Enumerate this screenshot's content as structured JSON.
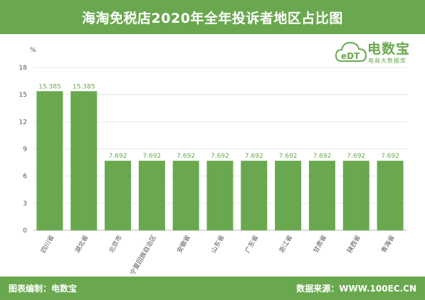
{
  "header": {
    "title": "海淘免税店2020年全年投诉者地区占比图"
  },
  "footer": {
    "left": "图表编制：电数宝",
    "right": "数据来源：WWW.100EC.CN"
  },
  "logo": {
    "name": "电数宝",
    "subtitle": "电商大数据库",
    "mark": "eDT"
  },
  "colors": {
    "accent": "#6aa84f",
    "bar": "#6aa84f",
    "grid": "#e8e8e8"
  },
  "chart_data": {
    "type": "bar",
    "title": "海淘免税店2020年全年投诉者地区占比图",
    "unit": "%",
    "categories": [
      "四川省",
      "湖北省",
      "北京市",
      "宁夏回族自治区",
      "安徽省",
      "山东省",
      "广东省",
      "浙江省",
      "甘肃省",
      "陕西省",
      "青海省"
    ],
    "values": [
      15.385,
      15.385,
      7.692,
      7.692,
      7.692,
      7.692,
      7.692,
      7.692,
      7.692,
      7.692,
      7.692
    ],
    "value_labels": [
      "15.385",
      "15.385",
      "7.692",
      "7.692",
      "7.692",
      "7.692",
      "7.692",
      "7.692",
      "7.692",
      "7.692",
      "7.692"
    ],
    "yticks": [
      "0",
      "3",
      "6",
      "9",
      "12",
      "15",
      "18"
    ],
    "ylim": [
      0,
      18
    ],
    "grid": true,
    "legend": "none"
  }
}
